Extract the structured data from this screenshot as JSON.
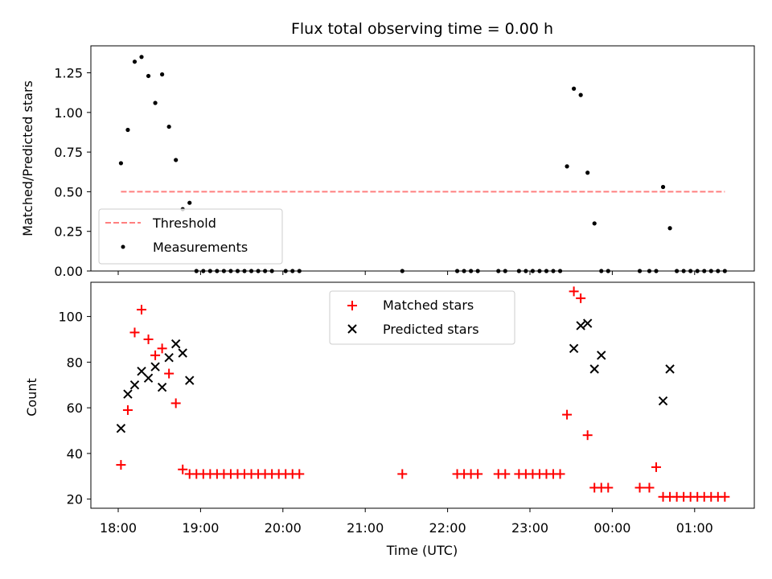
{
  "chart_data": [
    {
      "type": "line+scatter",
      "title": "Flux total observing time = 0.00 h",
      "ylabel": "Matched/Predicted stars",
      "ylim": [
        0,
        1.42
      ],
      "yticks": [
        0.0,
        0.25,
        0.5,
        0.75,
        1.0,
        1.25
      ],
      "ytick_labels": [
        "0.00",
        "0.25",
        "0.50",
        "0.75",
        "1.00",
        "1.25"
      ],
      "legend_position": "lower-left",
      "series": [
        {
          "name": "Threshold",
          "style": "dashed-line",
          "color": "#ff7f7f",
          "x": [
            "18:02",
            "01:22"
          ],
          "y": [
            0.5,
            0.5
          ]
        },
        {
          "name": "Measurements",
          "style": "dot",
          "color": "#000000",
          "x": [
            "18:02",
            "18:07",
            "18:12",
            "18:17",
            "18:22",
            "18:27",
            "18:32",
            "18:37",
            "18:42",
            "18:47",
            "18:52",
            "18:57",
            "19:02",
            "19:07",
            "19:12",
            "19:17",
            "19:22",
            "19:27",
            "19:32",
            "19:37",
            "19:42",
            "19:47",
            "19:52",
            "20:02",
            "20:07",
            "20:12",
            "21:27",
            "22:07",
            "22:12",
            "22:17",
            "22:22",
            "22:37",
            "22:42",
            "22:52",
            "22:57",
            "23:02",
            "23:07",
            "23:12",
            "23:17",
            "23:22",
            "23:27",
            "23:32",
            "23:37",
            "23:42",
            "23:47",
            "23:52",
            "23:57",
            "00:20",
            "00:27",
            "00:32",
            "00:37",
            "00:42",
            "00:47",
            "00:52",
            "00:57",
            "01:02",
            "01:07",
            "01:12",
            "01:17",
            "01:22"
          ],
          "y": [
            0.68,
            0.89,
            1.32,
            1.35,
            1.23,
            1.06,
            1.24,
            0.91,
            0.7,
            0.39,
            0.43,
            0,
            0,
            0,
            0,
            0,
            0,
            0,
            0,
            0,
            0,
            0,
            0,
            0,
            0,
            0,
            0,
            0,
            0,
            0,
            0,
            0,
            0,
            0,
            0,
            0,
            0,
            0,
            0,
            0,
            0.66,
            1.15,
            1.11,
            0.62,
            0.3,
            0,
            0,
            0,
            0,
            0,
            0.53,
            0.27,
            0,
            0,
            0,
            0,
            0,
            0,
            0,
            0
          ]
        }
      ]
    },
    {
      "type": "scatter",
      "xlabel": "Time (UTC)",
      "ylabel": "Count",
      "ylim": [
        16,
        115
      ],
      "yticks": [
        20,
        40,
        60,
        80,
        100
      ],
      "ytick_labels": [
        "20",
        "40",
        "60",
        "80",
        "100"
      ],
      "xticks": [
        "18:00",
        "19:00",
        "20:00",
        "21:00",
        "22:00",
        "23:00",
        "00:00",
        "01:00"
      ],
      "legend_position": "upper-center",
      "series": [
        {
          "name": "Matched stars",
          "marker": "plus",
          "color": "#ff0000",
          "x": [
            "18:02",
            "18:07",
            "18:12",
            "18:17",
            "18:22",
            "18:27",
            "18:32",
            "18:37",
            "18:42",
            "18:47",
            "18:52",
            "18:57",
            "19:02",
            "19:07",
            "19:12",
            "19:17",
            "19:22",
            "19:27",
            "19:32",
            "19:37",
            "19:42",
            "19:47",
            "19:52",
            "19:57",
            "20:02",
            "20:07",
            "20:12",
            "21:27",
            "22:07",
            "22:12",
            "22:17",
            "22:22",
            "22:37",
            "22:42",
            "22:52",
            "22:57",
            "23:02",
            "23:07",
            "23:12",
            "23:17",
            "23:22",
            "23:27",
            "23:32",
            "23:37",
            "23:42",
            "23:47",
            "23:52",
            "23:57",
            "00:20",
            "00:27",
            "00:32",
            "00:37",
            "00:42",
            "00:47",
            "00:52",
            "00:57",
            "01:02",
            "01:07",
            "01:12",
            "01:17",
            "01:22"
          ],
          "y": [
            35,
            59,
            93,
            103,
            90,
            83,
            86,
            75,
            62,
            33,
            31,
            31,
            31,
            31,
            31,
            31,
            31,
            31,
            31,
            31,
            31,
            31,
            31,
            31,
            31,
            31,
            31,
            31,
            31,
            31,
            31,
            31,
            31,
            31,
            31,
            31,
            31,
            31,
            31,
            31,
            31,
            57,
            111,
            108,
            48,
            25,
            25,
            25,
            25,
            25,
            34,
            21,
            21,
            21,
            21,
            21,
            21,
            21,
            21,
            21,
            21
          ]
        },
        {
          "name": "Predicted stars",
          "marker": "x",
          "color": "#000000",
          "x": [
            "18:02",
            "18:07",
            "18:12",
            "18:17",
            "18:22",
            "18:27",
            "18:32",
            "18:37",
            "18:42",
            "18:47",
            "18:52",
            "23:32",
            "23:37",
            "23:42",
            "23:47",
            "23:52",
            "00:37",
            "00:42"
          ],
          "y": [
            51,
            66,
            70,
            76,
            73,
            78,
            69,
            82,
            88,
            84,
            72,
            86,
            96,
            97,
            77,
            83,
            63,
            77
          ]
        }
      ]
    }
  ]
}
